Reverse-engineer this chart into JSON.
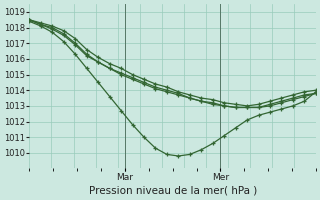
{
  "title": "Pression niveau de la mer( hPa )",
  "bg_color": "#cce8e0",
  "grid_color": "#99ccbb",
  "line_color": "#336633",
  "ylim": [
    1009.0,
    1019.5
  ],
  "yticks": [
    1010,
    1011,
    1012,
    1013,
    1014,
    1015,
    1016,
    1017,
    1018,
    1019
  ],
  "tick_fontsize": 6.0,
  "xlabel_fontsize": 7.5,
  "day_labels": [
    "Mar",
    "Mer"
  ],
  "day_positions": [
    0.333,
    0.667
  ],
  "series": [
    [
      1018.5,
      1018.3,
      1018.1,
      1017.8,
      1017.3,
      1016.6,
      1016.1,
      1015.7,
      1015.4,
      1015.0,
      1014.7,
      1014.4,
      1014.2,
      1013.9,
      1013.7,
      1013.5,
      1013.4,
      1013.2,
      1013.1,
      1013.0,
      1013.1,
      1013.3,
      1013.5,
      1013.7,
      1013.9,
      1014.0
    ],
    [
      1018.5,
      1018.2,
      1018.0,
      1017.6,
      1017.0,
      1016.3,
      1015.8,
      1015.4,
      1015.0,
      1014.7,
      1014.4,
      1014.1,
      1013.9,
      1013.7,
      1013.5,
      1013.3,
      1013.2,
      1013.0,
      1012.9,
      1012.9,
      1012.9,
      1013.1,
      1013.3,
      1013.5,
      1013.7,
      1013.8
    ],
    [
      1018.5,
      1018.2,
      1017.9,
      1017.5,
      1016.9,
      1016.2,
      1015.8,
      1015.4,
      1015.1,
      1014.8,
      1014.5,
      1014.2,
      1014.0,
      1013.8,
      1013.5,
      1013.3,
      1013.1,
      1013.0,
      1012.9,
      1012.9,
      1012.9,
      1013.0,
      1013.2,
      1013.4,
      1013.6,
      1013.8
    ],
    [
      1018.4,
      1018.1,
      1017.7,
      1017.1,
      1016.3,
      1015.4,
      1014.5,
      1013.6,
      1012.7,
      1011.8,
      1011.0,
      1010.3,
      1009.9,
      1009.8,
      1009.9,
      1010.2,
      1010.6,
      1011.1,
      1011.6,
      1012.1,
      1012.4,
      1012.6,
      1012.8,
      1013.0,
      1013.3,
      1013.9
    ]
  ]
}
